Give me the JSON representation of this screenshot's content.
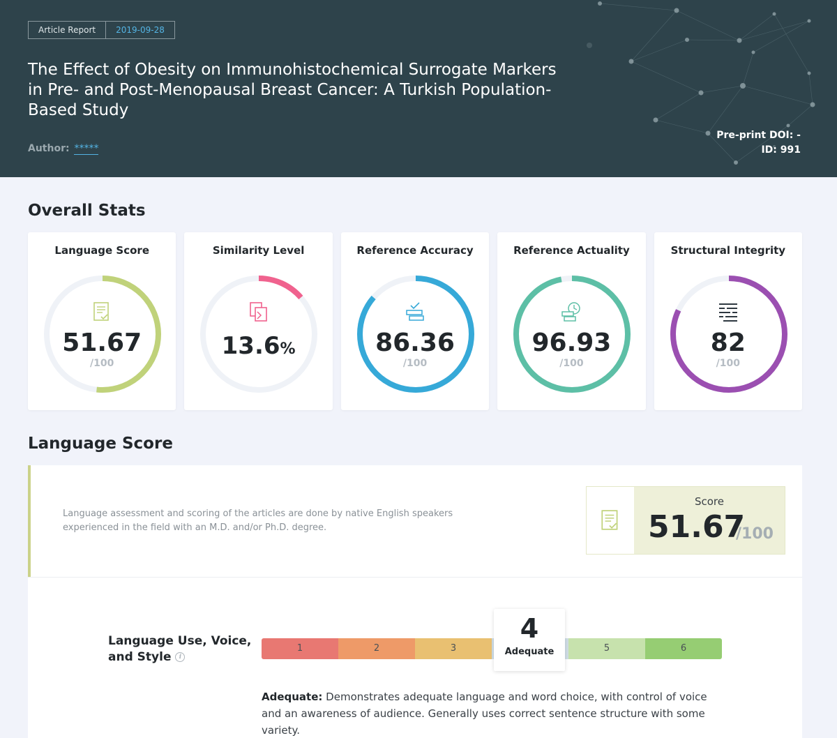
{
  "header": {
    "report_label": "Article Report",
    "date": "2019-09-28",
    "title": "The Effect of Obesity on Immunohistochemical Surrogate Markers in Pre- and Post-Menopausal Breast Cancer: A Turkish Population-Based Study",
    "author_label": "Author:",
    "author_value": "*****",
    "doi": "Pre-print DOI: -",
    "id": "ID: 991"
  },
  "overall": {
    "title": "Overall Stats",
    "cards": [
      {
        "title": "Language Score",
        "value": "51.67",
        "denominator": "/100",
        "percent_of_ring": 51.67,
        "color": "#c0d27a",
        "icon": "document-check-icon"
      },
      {
        "title": "Similarity Level",
        "value": "13.6",
        "suffix": "%",
        "percent_of_ring": 13.6,
        "color": "#f0628e",
        "icon": "copy-arrow-icon"
      },
      {
        "title": "Reference Accuracy",
        "value": "86.36",
        "denominator": "/100",
        "percent_of_ring": 86.36,
        "color": "#36a9d8",
        "icon": "stack-check-icon"
      },
      {
        "title": "Reference Actuality",
        "value": "96.93",
        "denominator": "/100",
        "percent_of_ring": 96.93,
        "color": "#5dbfa6",
        "icon": "stack-clock-icon"
      },
      {
        "title": "Structural Integrity",
        "value": "82",
        "denominator": "/100",
        "percent_of_ring": 82,
        "color": "#9b4fb1",
        "icon": "lines-icon"
      }
    ]
  },
  "language": {
    "title": "Language Score",
    "description": "Language assessment and scoring of the articles are done by native English speakers experienced in the field with an M.D. and/or Ph.D. degree.",
    "score_label": "Score",
    "score_value": "51.67",
    "score_den": "/100",
    "criterion": {
      "label_line1": "Language Use, Voice,",
      "label_line2": "and Style",
      "scale": [
        {
          "label": "1",
          "color": "#e87872"
        },
        {
          "label": "2",
          "color": "#ee9a68"
        },
        {
          "label": "3",
          "color": "#e9c071"
        },
        {
          "label": "4",
          "color": "#cfdde6"
        },
        {
          "label": "5",
          "color": "#c7e2ad"
        },
        {
          "label": "6",
          "color": "#96cd73"
        }
      ],
      "selected_value": "4",
      "selected_label": "Adequate",
      "desc_bold": "Adequate:",
      "desc_text": " Demonstrates adequate language and word choice, with control of voice and an awareness of audience. Generally uses correct sentence structure with some variety."
    }
  }
}
